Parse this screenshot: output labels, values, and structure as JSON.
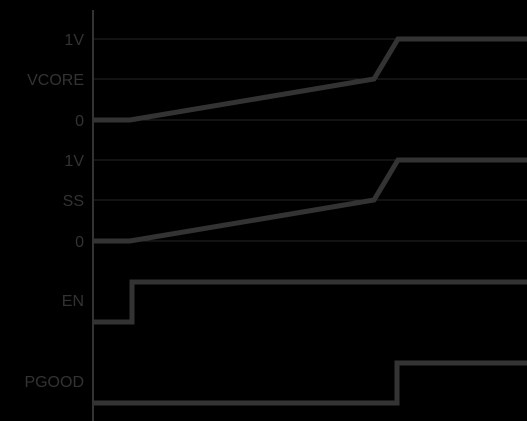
{
  "colors": {
    "background": "#000000",
    "grid": "#262626",
    "axis": "#333333",
    "signal": "#333333",
    "label": "#333333"
  },
  "labels": {
    "vcore_1v": "1V",
    "vcore": "VCORE",
    "vcore_0": "0",
    "ss_1v": "1V",
    "ss": "SS",
    "ss_0": "0",
    "en": "EN",
    "pgood": "PGOOD"
  },
  "traces": [
    {
      "name": "VCORE",
      "shape": "low -> slow ramp -> fast rise -> high"
    },
    {
      "name": "SS",
      "shape": "low -> slow ramp -> fast rise -> high"
    },
    {
      "name": "EN",
      "shape": "low -> step high"
    },
    {
      "name": "PGOOD",
      "shape": "low -> step high"
    }
  ]
}
